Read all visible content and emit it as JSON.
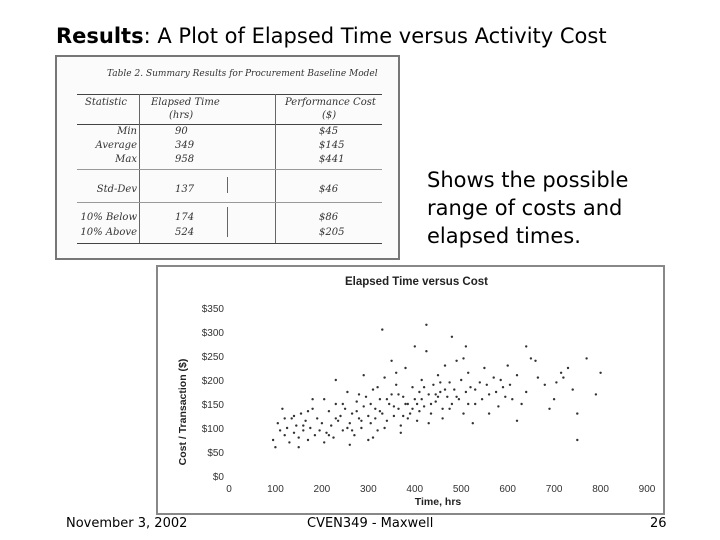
{
  "slide": {
    "title_bold": "Results",
    "title_rest": ":  A Plot of Elapsed Time versus Activity Cost",
    "note": "Shows the possible range of costs and elapsed times.",
    "footer_date": "November 3, 2002",
    "footer_course": "CVEN349 - Maxwell",
    "page_number": "26"
  },
  "summary_table": {
    "caption": "Table 2. Summary Results for Procurement Baseline Model",
    "headers": [
      "Statistic",
      "Elapsed Time (hrs)",
      "Performance Cost ($)"
    ],
    "header_elapsed_line1": "Elapsed Time",
    "header_elapsed_line2": "(hrs)",
    "header_cost_line1": "Performance Cost",
    "header_cost_line2": "($)",
    "rows": [
      {
        "stat": "Min",
        "elapsed": "90",
        "cost": "$45"
      },
      {
        "stat": "Average",
        "elapsed": "349",
        "cost": "$145"
      },
      {
        "stat": "Max",
        "elapsed": "958",
        "cost": "$441"
      },
      {
        "stat": "Std-Dev",
        "elapsed": "137",
        "cost": "$46"
      },
      {
        "stat": "10% Below",
        "elapsed": "174",
        "cost": "$86"
      },
      {
        "stat": "10% Above",
        "elapsed": "524",
        "cost": "$205"
      }
    ]
  },
  "chart_data": {
    "type": "scatter",
    "title": "Elapsed Time versus Cost",
    "xlabel": "Time, hrs",
    "ylabel": "Cost / Transaction ($)",
    "xlim": [
      0,
      900
    ],
    "ylim": [
      0,
      350
    ],
    "x_ticks": [
      "0",
      "100",
      "200",
      "300",
      "400",
      "500",
      "600",
      "700",
      "800",
      "900"
    ],
    "y_ticks": [
      "$0",
      "$50",
      "$100",
      "$150",
      "$200",
      "$250",
      "$300",
      "$350"
    ],
    "grid": false,
    "legend": "none",
    "marker_color": "#333333",
    "points": [
      [
        95,
        75
      ],
      [
        100,
        60
      ],
      [
        105,
        110
      ],
      [
        110,
        95
      ],
      [
        115,
        140
      ],
      [
        120,
        85
      ],
      [
        125,
        100
      ],
      [
        130,
        70
      ],
      [
        135,
        120
      ],
      [
        140,
        90
      ],
      [
        145,
        105
      ],
      [
        150,
        80
      ],
      [
        155,
        130
      ],
      [
        160,
        95
      ],
      [
        165,
        115
      ],
      [
        170,
        75
      ],
      [
        175,
        100
      ],
      [
        180,
        140
      ],
      [
        185,
        85
      ],
      [
        190,
        120
      ],
      [
        195,
        95
      ],
      [
        200,
        110
      ],
      [
        205,
        160
      ],
      [
        210,
        90
      ],
      [
        215,
        135
      ],
      [
        220,
        105
      ],
      [
        225,
        80
      ],
      [
        230,
        150
      ],
      [
        235,
        115
      ],
      [
        240,
        125
      ],
      [
        245,
        95
      ],
      [
        250,
        140
      ],
      [
        255,
        175
      ],
      [
        260,
        110
      ],
      [
        265,
        130
      ],
      [
        270,
        85
      ],
      [
        275,
        155
      ],
      [
        280,
        120
      ],
      [
        285,
        100
      ],
      [
        290,
        145
      ],
      [
        295,
        165
      ],
      [
        300,
        125
      ],
      [
        305,
        110
      ],
      [
        310,
        180
      ],
      [
        315,
        140
      ],
      [
        320,
        95
      ],
      [
        325,
        160
      ],
      [
        330,
        130
      ],
      [
        335,
        205
      ],
      [
        340,
        115
      ],
      [
        345,
        150
      ],
      [
        350,
        170
      ],
      [
        355,
        125
      ],
      [
        360,
        190
      ],
      [
        365,
        140
      ],
      [
        370,
        105
      ],
      [
        375,
        165
      ],
      [
        380,
        225
      ],
      [
        385,
        150
      ],
      [
        390,
        130
      ],
      [
        395,
        185
      ],
      [
        400,
        160
      ],
      [
        405,
        115
      ],
      [
        410,
        175
      ],
      [
        415,
        200
      ],
      [
        420,
        145
      ],
      [
        425,
        260
      ],
      [
        430,
        170
      ],
      [
        435,
        130
      ],
      [
        440,
        190
      ],
      [
        445,
        155
      ],
      [
        450,
        210
      ],
      [
        455,
        175
      ],
      [
        460,
        140
      ],
      [
        465,
        230
      ],
      [
        470,
        165
      ],
      [
        475,
        195
      ],
      [
        480,
        150
      ],
      [
        485,
        180
      ],
      [
        490,
        240
      ],
      [
        495,
        160
      ],
      [
        500,
        200
      ],
      [
        505,
        130
      ],
      [
        510,
        175
      ],
      [
        515,
        215
      ],
      [
        520,
        185
      ],
      [
        530,
        150
      ],
      [
        540,
        195
      ],
      [
        550,
        225
      ],
      [
        560,
        170
      ],
      [
        570,
        205
      ],
      [
        580,
        145
      ],
      [
        590,
        185
      ],
      [
        600,
        230
      ],
      [
        610,
        160
      ],
      [
        620,
        210
      ],
      [
        640,
        175
      ],
      [
        660,
        240
      ],
      [
        680,
        190
      ],
      [
        700,
        160
      ],
      [
        720,
        205
      ],
      [
        740,
        180
      ],
      [
        750,
        75
      ],
      [
        770,
        245
      ],
      [
        790,
        170
      ],
      [
        800,
        215
      ],
      [
        330,
        305
      ],
      [
        425,
        315
      ],
      [
        480,
        290
      ],
      [
        510,
        270
      ],
      [
        650,
        245
      ],
      [
        715,
        215
      ],
      [
        180,
        160
      ],
      [
        230,
        200
      ],
      [
        290,
        210
      ],
      [
        350,
        240
      ],
      [
        400,
        270
      ],
      [
        150,
        60
      ],
      [
        205,
        70
      ],
      [
        260,
        65
      ],
      [
        310,
        80
      ],
      [
        370,
        90
      ],
      [
        430,
        110
      ],
      [
        140,
        125
      ],
      [
        170,
        135
      ],
      [
        280,
        170
      ],
      [
        320,
        185
      ],
      [
        360,
        215
      ],
      [
        410,
        135
      ],
      [
        460,
        120
      ],
      [
        560,
        130
      ],
      [
        620,
        115
      ],
      [
        690,
        140
      ],
      [
        750,
        130
      ],
      [
        265,
        95
      ],
      [
        335,
        100
      ],
      [
        395,
        140
      ],
      [
        445,
        170
      ],
      [
        525,
        110
      ],
      [
        585,
        200
      ],
      [
        120,
        120
      ],
      [
        160,
        105
      ],
      [
        215,
        85
      ],
      [
        300,
        75
      ],
      [
        375,
        125
      ],
      [
        455,
        195
      ],
      [
        505,
        245
      ],
      [
        545,
        160
      ],
      [
        640,
        270
      ],
      [
        730,
        225
      ],
      [
        230,
        120
      ],
      [
        245,
        150
      ],
      [
        255,
        100
      ],
      [
        275,
        135
      ],
      [
        285,
        115
      ],
      [
        305,
        150
      ],
      [
        315,
        120
      ],
      [
        325,
        135
      ],
      [
        340,
        160
      ],
      [
        355,
        145
      ],
      [
        365,
        170
      ],
      [
        380,
        150
      ],
      [
        385,
        120
      ],
      [
        405,
        150
      ],
      [
        415,
        160
      ],
      [
        420,
        185
      ],
      [
        435,
        150
      ],
      [
        450,
        165
      ],
      [
        465,
        180
      ],
      [
        475,
        140
      ],
      [
        490,
        165
      ],
      [
        515,
        150
      ],
      [
        530,
        180
      ],
      [
        555,
        190
      ],
      [
        575,
        175
      ],
      [
        595,
        165
      ],
      [
        605,
        190
      ],
      [
        630,
        150
      ],
      [
        665,
        205
      ],
      [
        705,
        195
      ]
    ]
  }
}
